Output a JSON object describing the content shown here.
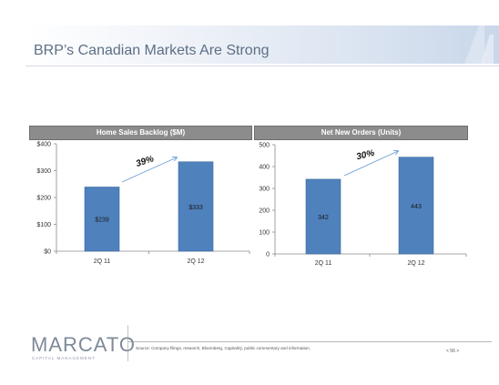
{
  "slide": {
    "title": "BRP’s Canadian Markets Are Strong",
    "source": "Source: Company filings, research, Bloomberg, CapitalIQ, public commentary and information.",
    "page_number": "< 56 >",
    "logo": "MARCATO",
    "logo_subtitle": "CAPITAL MANAGEMENT"
  },
  "colors": {
    "bar": "#4f81bd",
    "bar_border": "#3c6aa0",
    "growth_arrow": "#6a9fd4",
    "header_bg": "#8c8c8c",
    "title_text": "#5d6f86"
  },
  "chart_data": [
    {
      "type": "bar",
      "title": "Home Sales Backlog ($M)",
      "categories": [
        "2Q 11",
        "2Q 12"
      ],
      "values": [
        239,
        333
      ],
      "data_labels": [
        "$239",
        "$333"
      ],
      "yticks": [
        0,
        100,
        200,
        300,
        400
      ],
      "ytick_labels": [
        "$0",
        "$100",
        "$200",
        "$300",
        "$400"
      ],
      "ylim": [
        0,
        400
      ],
      "growth_label": "39%",
      "grid": false
    },
    {
      "type": "bar",
      "title": "Net New Orders (Units)",
      "categories": [
        "2Q 11",
        "2Q 12"
      ],
      "values": [
        342,
        443
      ],
      "data_labels": [
        "342",
        "443"
      ],
      "yticks": [
        0,
        100,
        200,
        300,
        400,
        500
      ],
      "ytick_labels": [
        "0",
        "100",
        "200",
        "300",
        "400",
        "500"
      ],
      "ylim": [
        0,
        500
      ],
      "growth_label": "30%",
      "grid": false
    }
  ]
}
